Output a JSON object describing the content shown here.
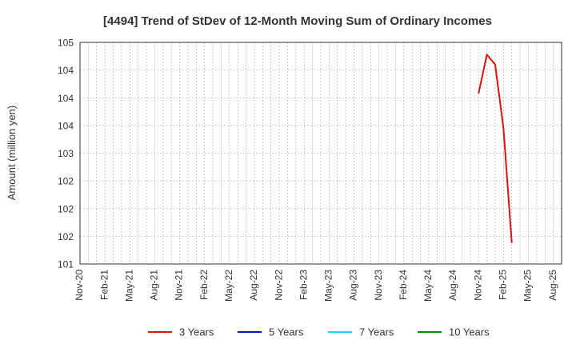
{
  "chart_data": {
    "type": "line",
    "title": "[4494]  Trend of StDev of 12-Month Moving Sum of Ordinary Incomes",
    "xlabel": "",
    "ylabel": "Amount (million yen)",
    "ylim": [
      101.0,
      105.0
    ],
    "ytick_values": [
      101.0,
      101.5,
      102.0,
      102.5,
      103.0,
      103.5,
      104.0,
      104.5,
      105.0
    ],
    "ytick_labels": [
      "101",
      "102",
      "102",
      "102",
      "103",
      "104",
      "104",
      "104",
      "105"
    ],
    "xticks": [
      "Nov-20",
      "Feb-21",
      "May-21",
      "Aug-21",
      "Nov-21",
      "Feb-22",
      "May-22",
      "Aug-22",
      "Nov-22",
      "Feb-23",
      "May-23",
      "Aug-23",
      "Nov-23",
      "Feb-24",
      "May-24",
      "Aug-24",
      "Nov-24",
      "Feb-25",
      "May-25",
      "Aug-25"
    ],
    "x_month_count": 58,
    "grid": true,
    "legend_position": "bottom",
    "series": [
      {
        "name": "3 Years",
        "color": "#dd1111",
        "points": [
          {
            "month_index": 48,
            "value": 104.08
          },
          {
            "month_index": 49,
            "value": 104.78
          },
          {
            "month_index": 50,
            "value": 104.6
          },
          {
            "month_index": 51,
            "value": 103.45
          },
          {
            "month_index": 52,
            "value": 101.38
          }
        ]
      },
      {
        "name": "5 Years",
        "color": "#0011cc",
        "points": []
      },
      {
        "name": "7 Years",
        "color": "#00ddee",
        "points": []
      },
      {
        "name": "10 Years",
        "color": "#118811",
        "points": []
      }
    ]
  }
}
